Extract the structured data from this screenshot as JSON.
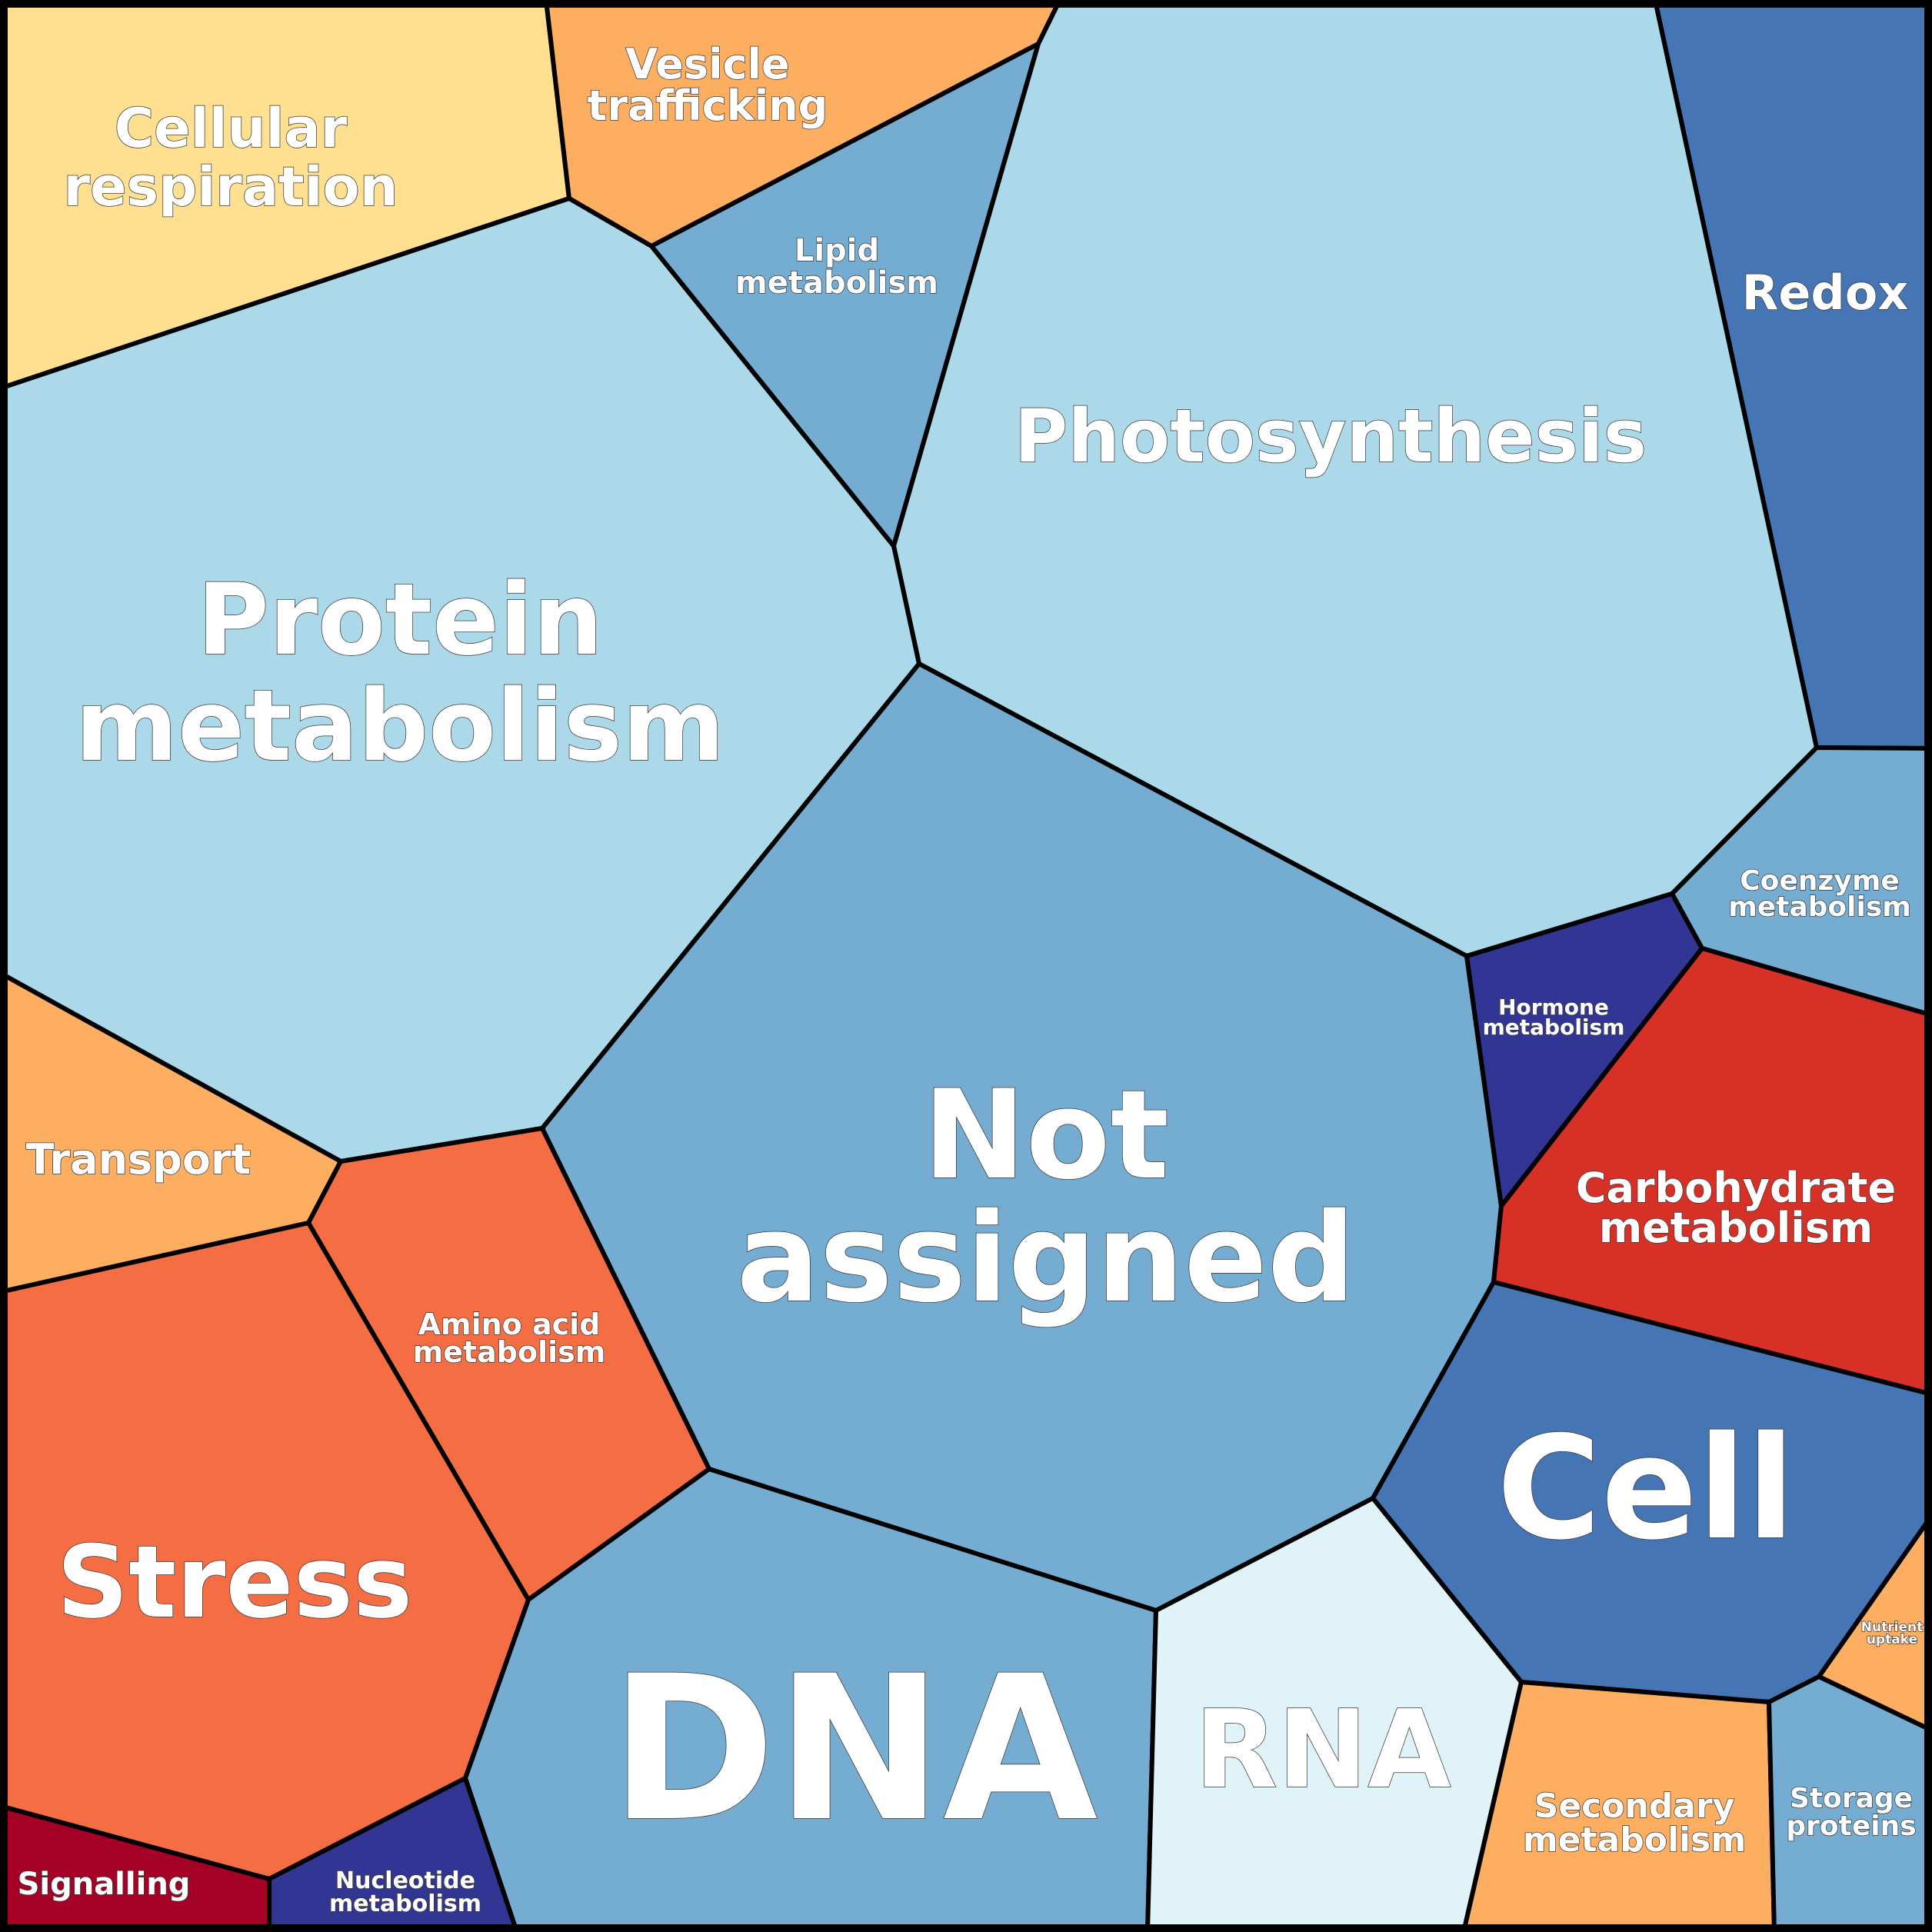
{
  "cells": [
    {
      "id": "cellular-respiration",
      "lines": [
        "Cellular",
        "respiration"
      ],
      "color": "#FEE090"
    },
    {
      "id": "vesicle-trafficking",
      "lines": [
        "Vesicle",
        "trafficking"
      ],
      "color": "#FDAE61"
    },
    {
      "id": "lipid-metabolism",
      "lines": [
        "Lipid",
        "metabolism"
      ],
      "color": "#74ADD1"
    },
    {
      "id": "photosynthesis",
      "lines": [
        "Photosynthesis"
      ],
      "color": "#ABD9E9"
    },
    {
      "id": "redox",
      "lines": [
        "Redox"
      ],
      "color": "#4575B4"
    },
    {
      "id": "protein-metabolism",
      "lines": [
        "Protein",
        "metabolism"
      ],
      "color": "#ABD9E9"
    },
    {
      "id": "not-assigned",
      "lines": [
        "Not",
        "assigned"
      ],
      "color": "#74ADD1"
    },
    {
      "id": "coenzyme-metabolism",
      "lines": [
        "Coenzyme",
        "metabolism"
      ],
      "color": "#74ADD1"
    },
    {
      "id": "hormone-metabolism",
      "lines": [
        "Hormone",
        "metabolism"
      ],
      "color": "#313695"
    },
    {
      "id": "carbohydrate-metabolism",
      "lines": [
        "Carbohydrate",
        "metabolism"
      ],
      "color": "#D73027"
    },
    {
      "id": "transport",
      "lines": [
        "Transport"
      ],
      "color": "#FDAE61"
    },
    {
      "id": "amino-acid-metabolism",
      "lines": [
        "Amino acid",
        "metabolism"
      ],
      "color": "#F46D43"
    },
    {
      "id": "stress",
      "lines": [
        "Stress"
      ],
      "color": "#F46D43"
    },
    {
      "id": "cell",
      "lines": [
        "Cell"
      ],
      "color": "#4575B4"
    },
    {
      "id": "dna",
      "lines": [
        "DNA"
      ],
      "color": "#74ADD1"
    },
    {
      "id": "rna",
      "lines": [
        "RNA"
      ],
      "color": "#E0F3F8"
    },
    {
      "id": "nutrient-uptake",
      "lines": [
        "Nutrient",
        "uptake"
      ],
      "color": "#FDAE61"
    },
    {
      "id": "secondary-metabolism",
      "lines": [
        "Secondary",
        "metabolism"
      ],
      "color": "#FDAE61"
    },
    {
      "id": "storage-proteins",
      "lines": [
        "Storage",
        "proteins"
      ],
      "color": "#74ADD1"
    },
    {
      "id": "signalling",
      "lines": [
        "Signalling"
      ],
      "color": "#A50026"
    },
    {
      "id": "nucleotide-metabolism",
      "lines": [
        "Nucleotide",
        "metabolism"
      ],
      "color": "#313695"
    }
  ]
}
